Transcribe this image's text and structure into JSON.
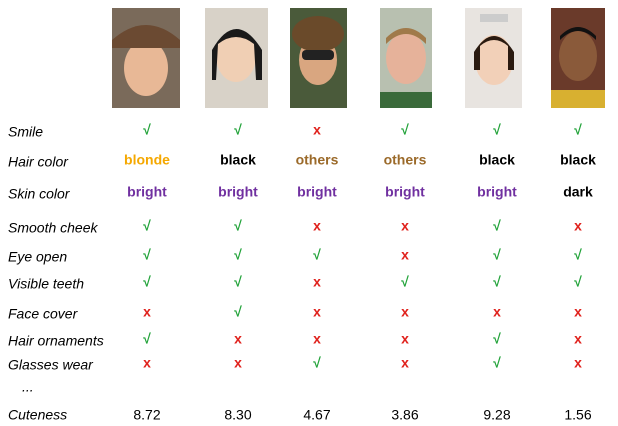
{
  "table": {
    "rows": [
      {
        "label": "Smile",
        "cells": [
          "√",
          "√",
          "x",
          "√",
          "√",
          "√"
        ],
        "colors": [
          "#22a33a",
          "#22a33a",
          "#e0201b",
          "#22a33a",
          "#22a33a",
          "#22a33a"
        ]
      },
      {
        "label": "Hair color",
        "cells": [
          "blonde",
          "black",
          "others",
          "others",
          "black",
          "black"
        ],
        "colors": [
          "#f5a800",
          "#000000",
          "#9b6a2a",
          "#9b6a2a",
          "#000000",
          "#000000"
        ]
      },
      {
        "label": "Skin color",
        "cells": [
          "bright",
          "bright",
          "bright",
          "bright",
          "bright",
          "dark"
        ],
        "colors": [
          "#7030a0",
          "#7030a0",
          "#7030a0",
          "#7030a0",
          "#7030a0",
          "#000000"
        ]
      },
      {
        "label": "Smooth cheek",
        "cells": [
          "√",
          "√",
          "x",
          "x",
          "√",
          "x"
        ],
        "colors": [
          "#22a33a",
          "#22a33a",
          "#e0201b",
          "#e0201b",
          "#22a33a",
          "#e0201b"
        ]
      },
      {
        "label": "Eye open",
        "cells": [
          "√",
          "√",
          "√",
          "x",
          "√",
          "√"
        ],
        "colors": [
          "#22a33a",
          "#22a33a",
          "#22a33a",
          "#e0201b",
          "#22a33a",
          "#22a33a"
        ]
      },
      {
        "label": "Visible teeth",
        "cells": [
          "√",
          "√",
          "x",
          "√",
          "√",
          "√"
        ],
        "colors": [
          "#22a33a",
          "#22a33a",
          "#e0201b",
          "#22a33a",
          "#22a33a",
          "#22a33a"
        ]
      },
      {
        "label": "Face cover",
        "cells": [
          "x",
          "√",
          "x",
          "x",
          "x",
          "x"
        ],
        "colors": [
          "#e0201b",
          "#22a33a",
          "#e0201b",
          "#e0201b",
          "#e0201b",
          "#e0201b"
        ]
      },
      {
        "label": "Hair ornaments",
        "cells": [
          "√",
          "x",
          "x",
          "x",
          "√",
          "x"
        ],
        "colors": [
          "#22a33a",
          "#e0201b",
          "#e0201b",
          "#e0201b",
          "#22a33a",
          "#e0201b"
        ]
      },
      {
        "label": "Glasses wear",
        "cells": [
          "x",
          "x",
          "√",
          "x",
          "√",
          "x"
        ],
        "colors": [
          "#e0201b",
          "#e0201b",
          "#22a33a",
          "#e0201b",
          "#22a33a",
          "#e0201b"
        ]
      },
      {
        "label": "..."
      },
      {
        "label": "Cuteness",
        "cells": [
          "8.72",
          "8.30",
          "4.67",
          "3.86",
          "9.28",
          "1.56"
        ],
        "colors": [
          "#000000",
          "#000000",
          "#000000",
          "#000000",
          "#000000",
          "#000000"
        ]
      }
    ]
  }
}
